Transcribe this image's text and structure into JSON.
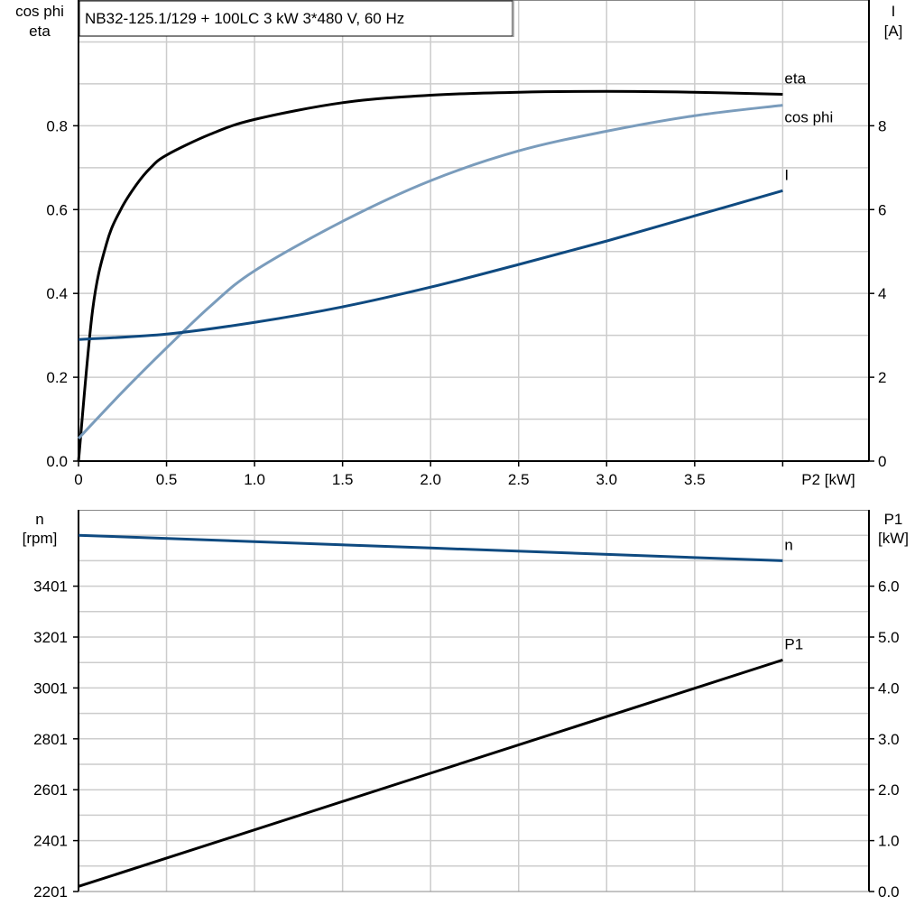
{
  "chart_data": [
    {
      "type": "line",
      "title": "NB32-125.1/129 + 100LC   3 kW   3*480 V, 60 Hz",
      "xlabel": "P2 [kW]",
      "ylabel_left": [
        "cos phi",
        "eta"
      ],
      "ylabel_right": [
        "I",
        "[A]"
      ],
      "xlim": [
        0,
        4.49
      ],
      "ylim_left": [
        0,
        1.1
      ],
      "ylim_right": [
        0,
        11
      ],
      "x_ticks": [
        "0",
        "0.5",
        "1.0",
        "1.5",
        "2.0",
        "2.5",
        "3.0",
        "3.5"
      ],
      "y_ticks_left": [
        "0.0",
        "0.2",
        "0.4",
        "0.6",
        "0.8"
      ],
      "y_ticks_right": [
        "0",
        "2",
        "4",
        "6",
        "8"
      ],
      "grid": true,
      "series": [
        {
          "name": "eta",
          "axis": "left",
          "color": "#000000",
          "x": [
            0,
            0.08,
            0.16,
            0.24,
            0.33,
            0.41,
            0.5,
            0.75,
            1.0,
            1.5,
            2.0,
            2.5,
            3.0,
            3.5,
            4.0
          ],
          "y": [
            0,
            0.36,
            0.52,
            0.6,
            0.66,
            0.7,
            0.73,
            0.78,
            0.815,
            0.855,
            0.873,
            0.88,
            0.882,
            0.88,
            0.875
          ]
        },
        {
          "name": "cos phi",
          "axis": "left",
          "color": "#7a9cbc",
          "x": [
            0,
            0.25,
            0.5,
            0.75,
            1.0,
            1.5,
            2.0,
            2.5,
            3.0,
            3.5,
            4.0
          ],
          "y": [
            0.054,
            0.165,
            0.27,
            0.37,
            0.454,
            0.572,
            0.669,
            0.74,
            0.787,
            0.824,
            0.849
          ]
        },
        {
          "name": "I",
          "axis": "right",
          "color": "#0f4a80",
          "x": [
            0,
            0.5,
            1.0,
            1.5,
            2.0,
            2.5,
            3.0,
            3.5,
            4.0
          ],
          "y": [
            2.9,
            3.03,
            3.31,
            3.68,
            4.15,
            4.69,
            5.25,
            5.85,
            6.45
          ]
        }
      ]
    },
    {
      "type": "line",
      "ylabel_left": [
        "n",
        "[rpm]"
      ],
      "ylabel_right": [
        "P1",
        "[kW]"
      ],
      "xlim": [
        0,
        4.49
      ],
      "ylim_left": [
        2201,
        3701
      ],
      "ylim_right": [
        0,
        7.5
      ],
      "y_ticks_left": [
        "2201",
        "2401",
        "2601",
        "2801",
        "3001",
        "3201",
        "3401"
      ],
      "y_ticks_right": [
        "0.0",
        "1.0",
        "2.0",
        "3.0",
        "4.0",
        "5.0",
        "6.0"
      ],
      "grid": true,
      "series": [
        {
          "name": "n",
          "axis": "left",
          "color": "#0f4a80",
          "x": [
            0,
            4.0
          ],
          "y": [
            3601,
            3501
          ]
        },
        {
          "name": "P1",
          "axis": "right",
          "color": "#000000",
          "x": [
            0,
            4.0
          ],
          "y": [
            0.1,
            4.55
          ]
        }
      ]
    }
  ]
}
